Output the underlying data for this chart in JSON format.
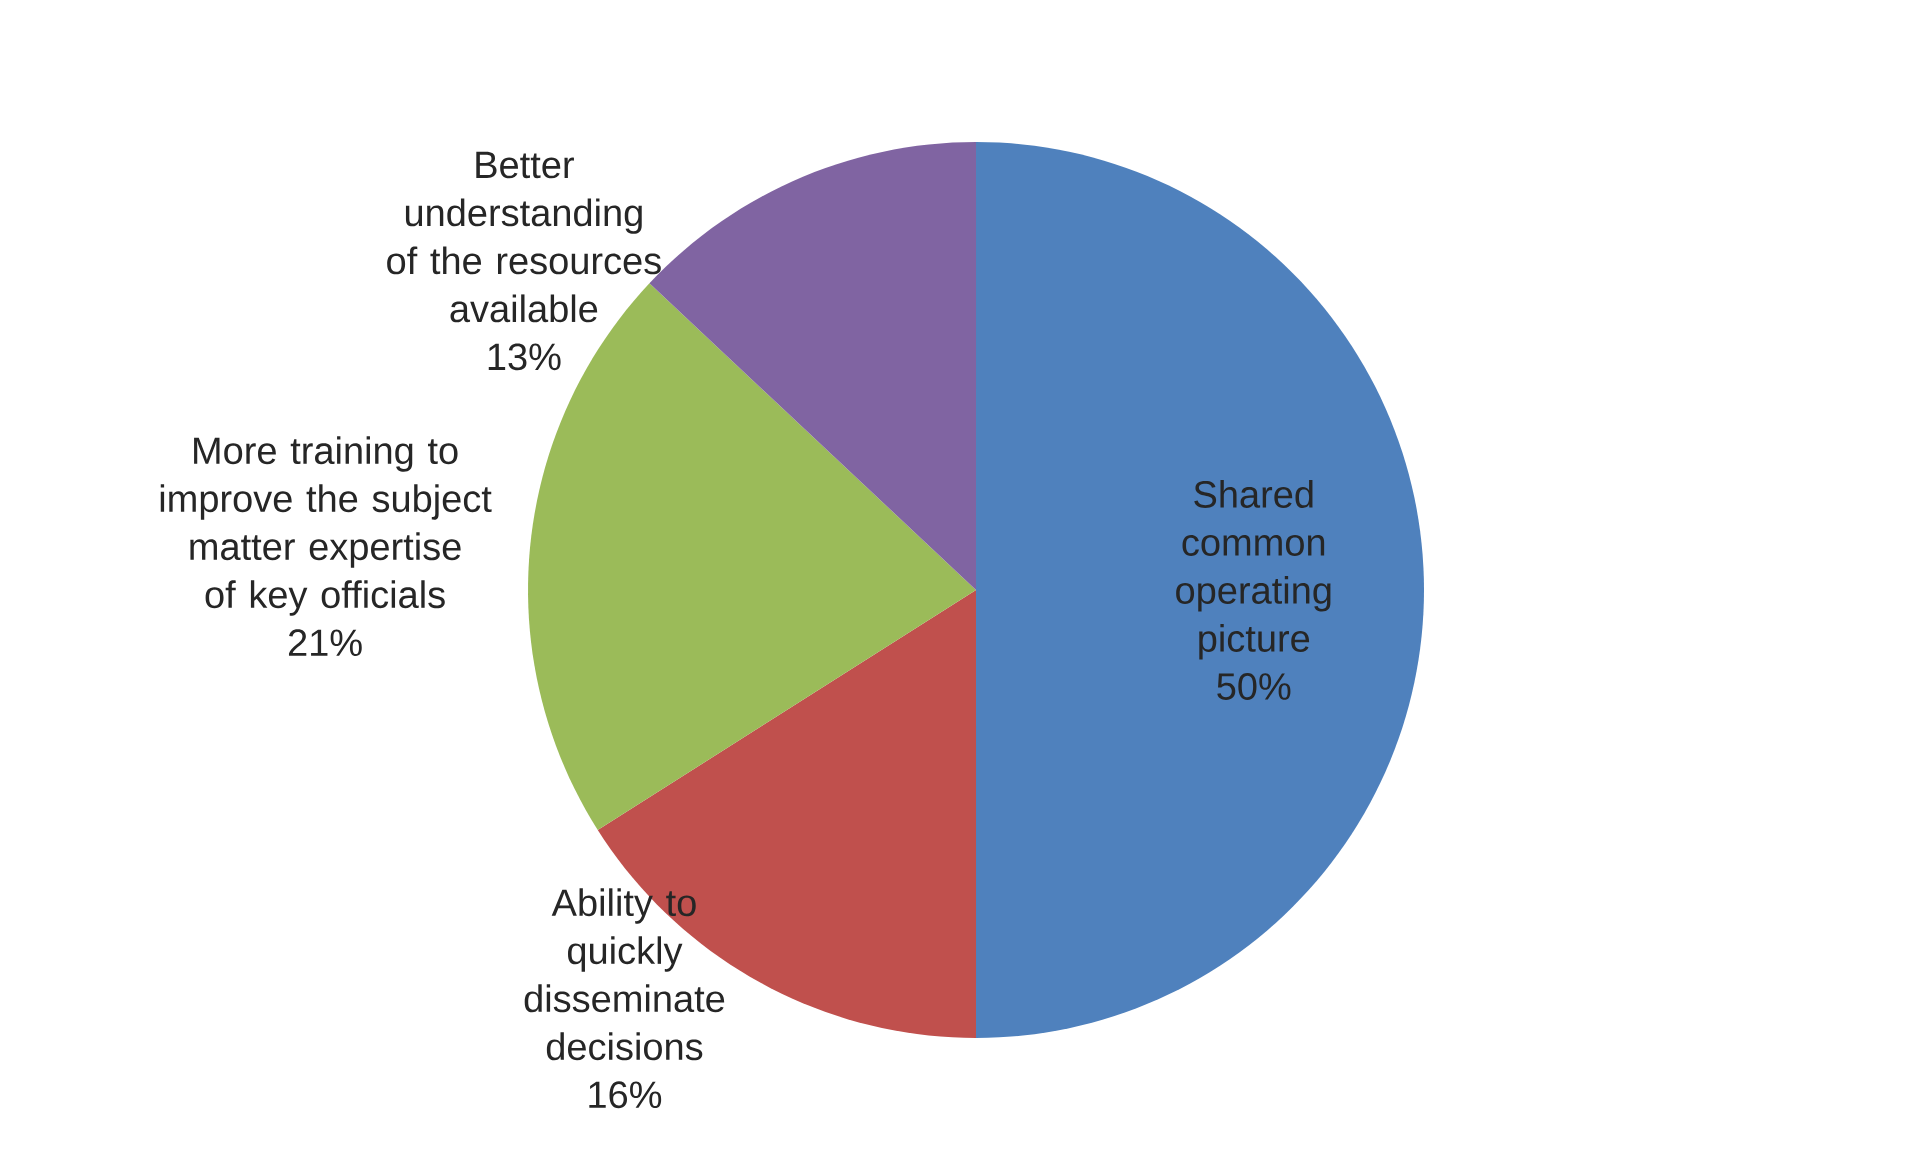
{
  "chart_data": {
    "type": "pie",
    "categories": [
      "Shared common operating picture",
      "Ability to quickly disseminate decisions",
      "More training to improve the subject matter expertise of key officials",
      "Better understanding of the resources available"
    ],
    "values": [
      50,
      16,
      21,
      13
    ],
    "value_labels": [
      "50%",
      "16%",
      "21%",
      "13%"
    ],
    "colors": [
      "#4f81bd",
      "#c0504d",
      "#9bbb59",
      "#8064a2"
    ]
  }
}
